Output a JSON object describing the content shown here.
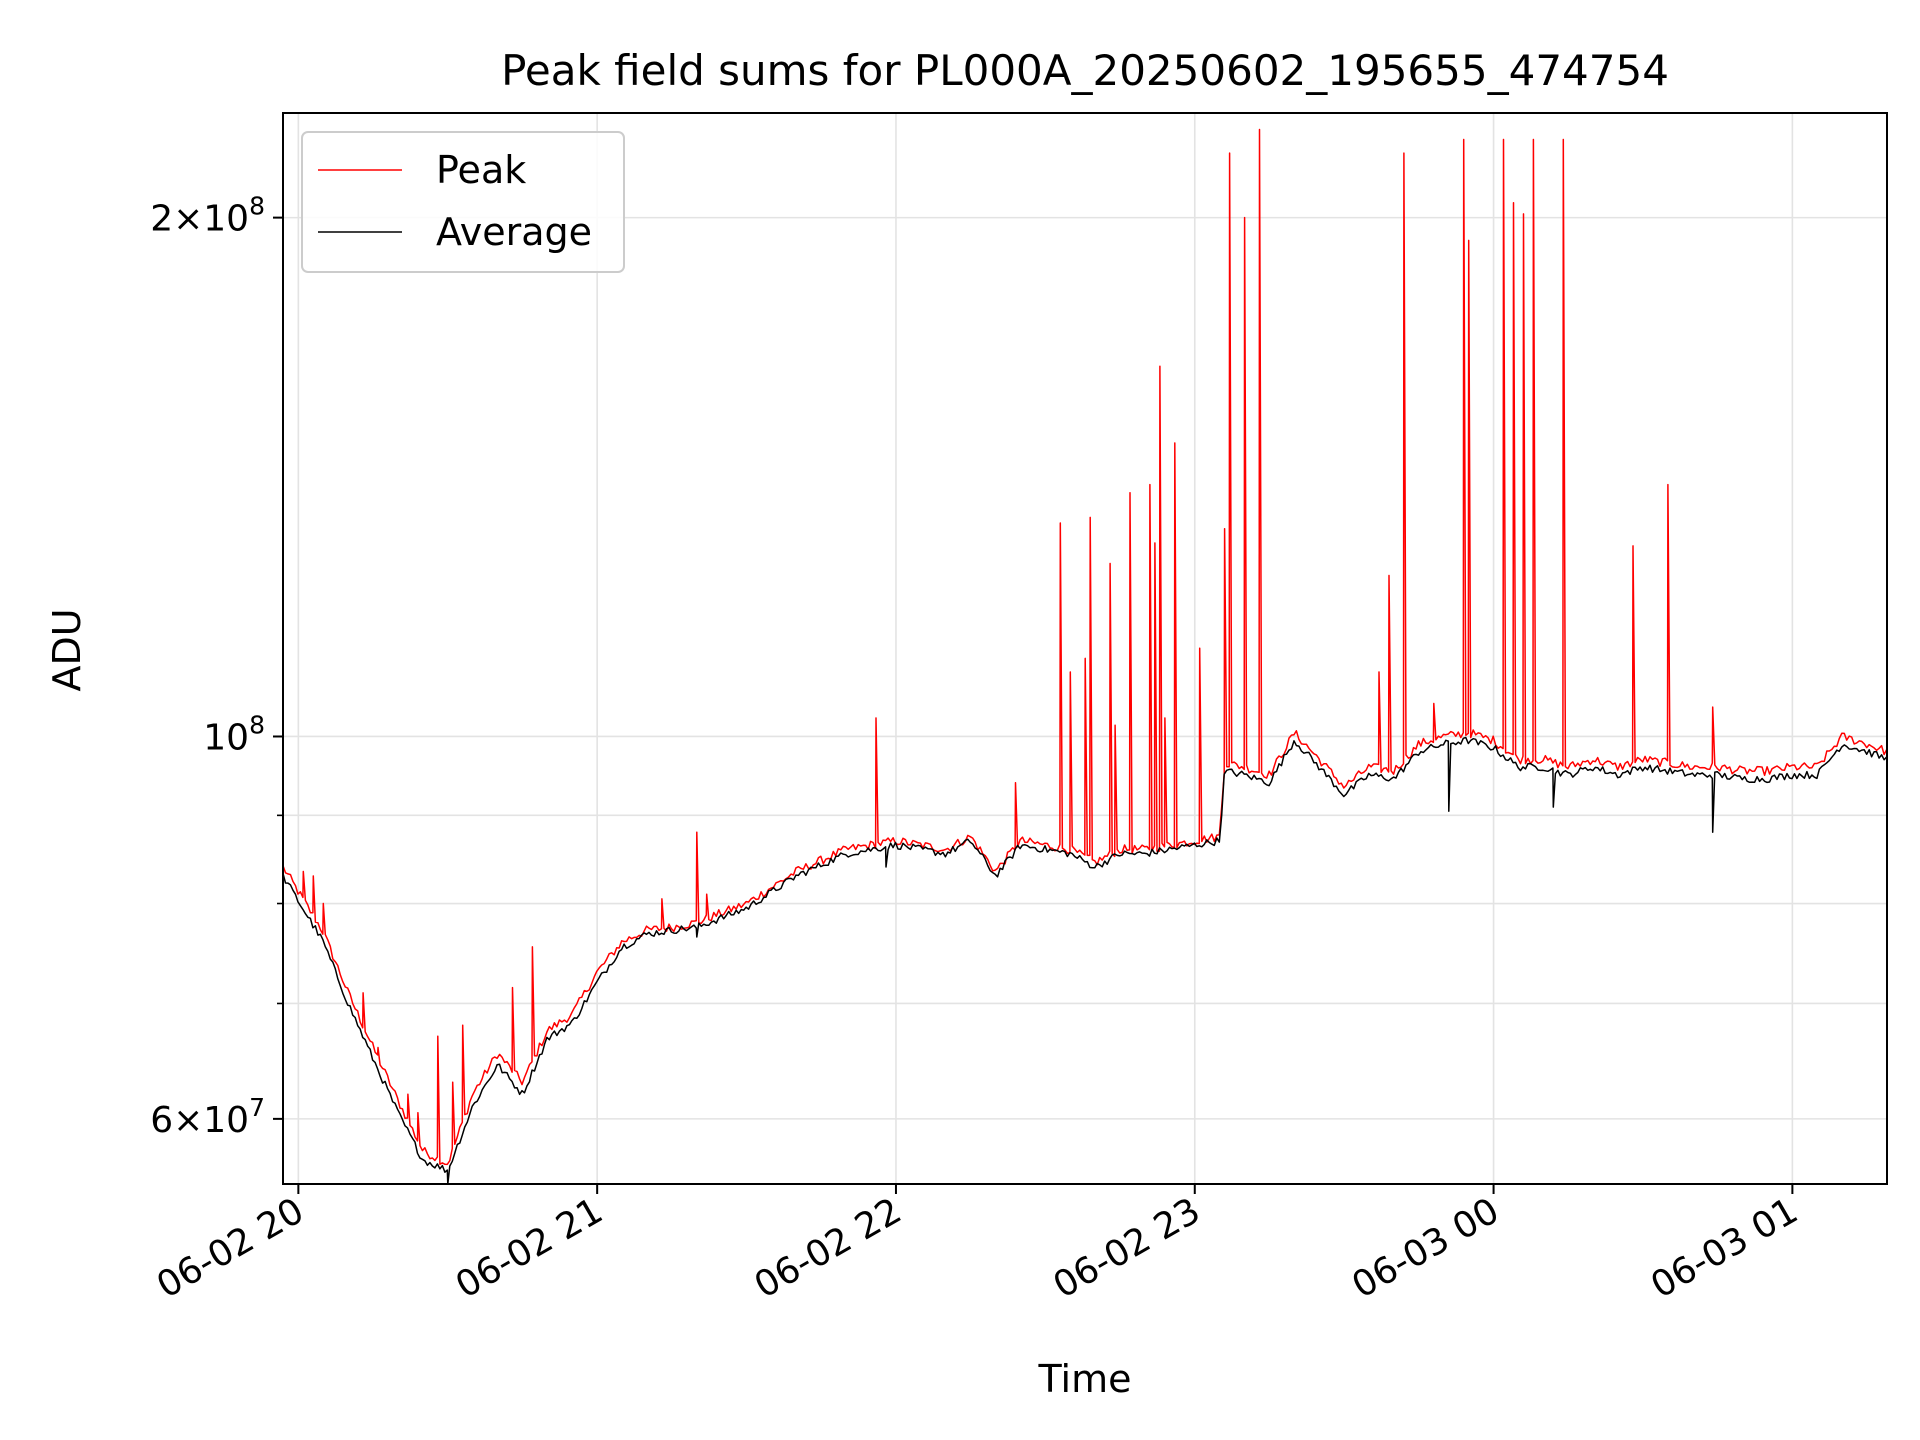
{
  "chart_data": {
    "type": "line",
    "title": "Peak field sums for PL000A_20250602_195655_474754",
    "xlabel": "Time",
    "ylabel": "ADU",
    "yscale": "log",
    "xlim": [
      "2025-06-02 19:56:55",
      "2025-06-03 01:19:00"
    ],
    "ylim": [
      55000000,
      230000000
    ],
    "grid": true,
    "legend_position": "upper-left",
    "x_ticks": [
      {
        "label": "06-02 20",
        "t": "2025-06-02 20:00"
      },
      {
        "label": "06-02 21",
        "t": "2025-06-02 21:00"
      },
      {
        "label": "06-02 22",
        "t": "2025-06-02 22:00"
      },
      {
        "label": "06-02 23",
        "t": "2025-06-02 23:00"
      },
      {
        "label": "06-03 00",
        "t": "2025-06-03 00:00"
      },
      {
        "label": "06-03 01",
        "t": "2025-06-03 01:00"
      }
    ],
    "y_major_ticks": [
      {
        "value": 60000000,
        "mantissa": "6",
        "exponent": "7"
      },
      {
        "value": 100000000,
        "mantissa": "",
        "exponent": "8"
      },
      {
        "value": 200000000,
        "mantissa": "2",
        "exponent": "8"
      }
    ],
    "y_minor_ticks": [
      70000000,
      80000000,
      90000000
    ],
    "colors": {
      "peak": "#ff0000",
      "average": "#000000",
      "grid": "#e3e3e3"
    },
    "series": [
      {
        "name": "Peak",
        "color": "#ff0000",
        "x": [
          "2025-06-02 19:56:55",
          "2025-06-02 20:05",
          "2025-06-02 20:10",
          "2025-06-02 20:15",
          "2025-06-02 20:20",
          "2025-06-02 20:25",
          "2025-06-02 20:30",
          "2025-06-02 20:35",
          "2025-06-02 20:40",
          "2025-06-02 20:45",
          "2025-06-02 20:50",
          "2025-06-02 20:55",
          "2025-06-02 21:00",
          "2025-06-02 21:05",
          "2025-06-02 21:10",
          "2025-06-02 21:15",
          "2025-06-02 21:20",
          "2025-06-02 21:30",
          "2025-06-02 21:40",
          "2025-06-02 21:50",
          "2025-06-02 21:55",
          "2025-06-02 22:00",
          "2025-06-02 22:05",
          "2025-06-02 22:10",
          "2025-06-02 22:15",
          "2025-06-02 22:20",
          "2025-06-02 22:25",
          "2025-06-02 22:30",
          "2025-06-02 22:35",
          "2025-06-02 22:40",
          "2025-06-02 22:45",
          "2025-06-02 22:50",
          "2025-06-02 22:55",
          "2025-06-02 23:00",
          "2025-06-02 23:05",
          "2025-06-02 23:06",
          "2025-06-02 23:10",
          "2025-06-02 23:15",
          "2025-06-02 23:20",
          "2025-06-02 23:25",
          "2025-06-02 23:30",
          "2025-06-02 23:35",
          "2025-06-02 23:40",
          "2025-06-02 23:45",
          "2025-06-02 23:50",
          "2025-06-02 23:55",
          "2025-06-03 00:00",
          "2025-06-03 00:05",
          "2025-06-03 00:10",
          "2025-06-03 00:15",
          "2025-06-03 00:20",
          "2025-06-03 00:25",
          "2025-06-03 00:30",
          "2025-06-03 00:35",
          "2025-06-03 00:40",
          "2025-06-03 00:45",
          "2025-06-03 00:50",
          "2025-06-03 00:55",
          "2025-06-03 01:00",
          "2025-06-03 01:05",
          "2025-06-03 01:10",
          "2025-06-03 01:15",
          "2025-06-03 01:19"
        ],
        "y": [
          84000000,
          77000000,
          71000000,
          66000000,
          61500000,
          57500000,
          56500000,
          62000000,
          65500000,
          63000000,
          67500000,
          69000000,
          73000000,
          76000000,
          77200000,
          77500000,
          78000000,
          80000000,
          83500000,
          86000000,
          86500000,
          87000000,
          86500000,
          86000000,
          87500000,
          83500000,
          87000000,
          86500000,
          86000000,
          84500000,
          86000000,
          86000000,
          86500000,
          87000000,
          87500000,
          96500000,
          96000000,
          95000000,
          100500000,
          97000000,
          93500000,
          96000000,
          95500000,
          99000000,
          100000000,
          100500000,
          99500000,
          97000000,
          97000000,
          96000000,
          97000000,
          96000000,
          97000000,
          96500000,
          96000000,
          96000000,
          95500000,
          95500000,
          96000000,
          96000000,
          100000000,
          99000000,
          98000000
        ]
      },
      {
        "name": "Average",
        "color": "#000000",
        "x": [
          "2025-06-02 19:56:55",
          "2025-06-02 20:05",
          "2025-06-02 20:10",
          "2025-06-02 20:15",
          "2025-06-02 20:20",
          "2025-06-02 20:25",
          "2025-06-02 20:30",
          "2025-06-02 20:35",
          "2025-06-02 20:40",
          "2025-06-02 20:45",
          "2025-06-02 20:50",
          "2025-06-02 20:55",
          "2025-06-02 21:00",
          "2025-06-02 21:05",
          "2025-06-02 21:10",
          "2025-06-02 21:15",
          "2025-06-02 21:20",
          "2025-06-02 21:30",
          "2025-06-02 21:40",
          "2025-06-02 21:50",
          "2025-06-02 21:55",
          "2025-06-02 22:00",
          "2025-06-02 22:05",
          "2025-06-02 22:10",
          "2025-06-02 22:15",
          "2025-06-02 22:20",
          "2025-06-02 22:25",
          "2025-06-02 22:30",
          "2025-06-02 22:35",
          "2025-06-02 22:40",
          "2025-06-02 22:45",
          "2025-06-02 22:50",
          "2025-06-02 22:55",
          "2025-06-02 23:00",
          "2025-06-02 23:05",
          "2025-06-02 23:06",
          "2025-06-02 23:10",
          "2025-06-02 23:15",
          "2025-06-02 23:20",
          "2025-06-02 23:25",
          "2025-06-02 23:30",
          "2025-06-02 23:35",
          "2025-06-02 23:40",
          "2025-06-02 23:45",
          "2025-06-02 23:50",
          "2025-06-02 23:55",
          "2025-06-03 00:00",
          "2025-06-03 00:05",
          "2025-06-03 00:10",
          "2025-06-03 00:15",
          "2025-06-03 00:20",
          "2025-06-03 00:25",
          "2025-06-03 00:30",
          "2025-06-03 00:35",
          "2025-06-03 00:40",
          "2025-06-03 00:45",
          "2025-06-03 00:50",
          "2025-06-03 00:55",
          "2025-06-03 01:00",
          "2025-06-03 01:05",
          "2025-06-03 01:10",
          "2025-06-03 01:15",
          "2025-06-03 01:19"
        ],
        "y": [
          83000000,
          76000000,
          70000000,
          65000000,
          60500000,
          56800000,
          56000000,
          61000000,
          64500000,
          62000000,
          66800000,
          68200000,
          72000000,
          75500000,
          76800000,
          77200000,
          77500000,
          79500000,
          83000000,
          85500000,
          86000000,
          86500000,
          86000000,
          85500000,
          87000000,
          83000000,
          86500000,
          86000000,
          85500000,
          84000000,
          85500000,
          85500000,
          86000000,
          86500000,
          87000000,
          95500000,
          95000000,
          94000000,
          99500000,
          96000000,
          92500000,
          95000000,
          94500000,
          98000000,
          99000000,
          99500000,
          98500000,
          96000000,
          96000000,
          95000000,
          96000000,
          95000000,
          96000000,
          95500000,
          95000000,
          95000000,
          94500000,
          94500000,
          95000000,
          95000000,
          99000000,
          98000000,
          97000000
        ]
      }
    ],
    "peak_spikes": [
      {
        "t": "2025-06-02 20:01",
        "y": 83500000
      },
      {
        "t": "2025-06-02 20:03",
        "y": 83000000
      },
      {
        "t": "2025-06-02 20:05",
        "y": 80000000
      },
      {
        "t": "2025-06-02 20:13",
        "y": 71000000
      },
      {
        "t": "2025-06-02 20:16",
        "y": 66000000
      },
      {
        "t": "2025-06-02 20:22",
        "y": 62000000
      },
      {
        "t": "2025-06-02 20:24",
        "y": 60500000
      },
      {
        "t": "2025-06-02 20:28",
        "y": 67000000
      },
      {
        "t": "2025-06-02 20:31",
        "y": 63000000
      },
      {
        "t": "2025-06-02 20:33",
        "y": 68000000
      },
      {
        "t": "2025-06-02 20:43",
        "y": 71500000
      },
      {
        "t": "2025-06-02 20:47",
        "y": 75500000
      },
      {
        "t": "2025-06-02 21:13",
        "y": 80500000
      },
      {
        "t": "2025-06-02 21:20",
        "y": 88000000
      },
      {
        "t": "2025-06-02 21:22",
        "y": 81000000
      },
      {
        "t": "2025-06-02 21:56",
        "y": 102500000
      },
      {
        "t": "2025-06-02 22:24",
        "y": 94000000
      },
      {
        "t": "2025-06-02 22:33",
        "y": 133000000
      },
      {
        "t": "2025-06-02 22:35",
        "y": 109000000
      },
      {
        "t": "2025-06-02 22:38",
        "y": 111000000
      },
      {
        "t": "2025-06-02 22:39",
        "y": 134000000
      },
      {
        "t": "2025-06-02 22:43",
        "y": 126000000
      },
      {
        "t": "2025-06-02 22:44",
        "y": 101500000
      },
      {
        "t": "2025-06-02 22:47",
        "y": 138500000
      },
      {
        "t": "2025-06-02 22:51",
        "y": 140000000
      },
      {
        "t": "2025-06-02 22:52",
        "y": 129500000
      },
      {
        "t": "2025-06-02 22:53",
        "y": 164000000
      },
      {
        "t": "2025-06-02 22:54",
        "y": 102500000
      },
      {
        "t": "2025-06-02 22:56",
        "y": 148000000
      },
      {
        "t": "2025-06-02 23:01",
        "y": 112500000
      },
      {
        "t": "2025-06-02 23:06",
        "y": 132000000
      },
      {
        "t": "2025-06-02 23:07",
        "y": 218000000
      },
      {
        "t": "2025-06-02 23:10",
        "y": 200000000
      },
      {
        "t": "2025-06-02 23:13",
        "y": 225000000
      },
      {
        "t": "2025-06-02 23:37",
        "y": 109000000
      },
      {
        "t": "2025-06-02 23:39",
        "y": 124000000
      },
      {
        "t": "2025-06-02 23:42",
        "y": 218000000
      },
      {
        "t": "2025-06-02 23:48",
        "y": 104500000
      },
      {
        "t": "2025-06-02 23:54",
        "y": 222000000
      },
      {
        "t": "2025-06-02 23:55",
        "y": 194000000
      },
      {
        "t": "2025-06-03 00:02",
        "y": 222000000
      },
      {
        "t": "2025-06-03 00:04",
        "y": 204000000
      },
      {
        "t": "2025-06-03 00:06",
        "y": 201000000
      },
      {
        "t": "2025-06-03 00:08",
        "y": 222000000
      },
      {
        "t": "2025-06-03 00:14",
        "y": 222000000
      },
      {
        "t": "2025-06-03 00:28",
        "y": 129000000
      },
      {
        "t": "2025-06-03 00:35",
        "y": 140000000
      },
      {
        "t": "2025-06-03 00:44",
        "y": 104000000
      }
    ],
    "average_dips": [
      {
        "t": "2025-06-02 20:30",
        "y": 55000000
      },
      {
        "t": "2025-06-02 21:20",
        "y": 76500000
      },
      {
        "t": "2025-06-02 21:58",
        "y": 84000000
      },
      {
        "t": "2025-06-02 23:51",
        "y": 90500000
      },
      {
        "t": "2025-06-03 00:12",
        "y": 91000000
      },
      {
        "t": "2025-06-03 00:44",
        "y": 88000000
      }
    ]
  }
}
